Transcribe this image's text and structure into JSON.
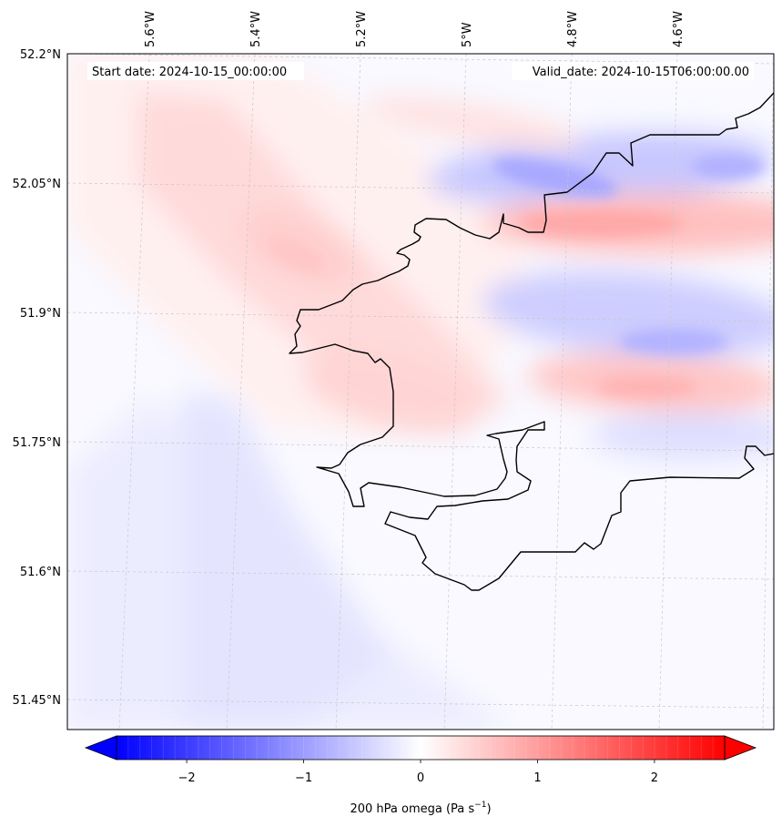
{
  "map": {
    "start_label": "Start date: 2024-10-15_00:00:00",
    "valid_label": "Valid_date: 2024-10-15T06:00:00.00",
    "lon_ticks": [
      "5.6°W",
      "5.4°W",
      "5.2°W",
      "5°W",
      "4.8°W",
      "4.6°W"
    ],
    "lat_ticks": [
      "52.2°N",
      "52.05°N",
      "51.9°N",
      "51.75°N",
      "51.6°N",
      "51.45°N"
    ],
    "field": "200 hPa omega",
    "colormap": "bwr",
    "colors": {
      "negative": "#0000ff",
      "zero": "#ffffff",
      "positive": "#ff0000",
      "coast": "#000000",
      "grid": "#c8c8c8"
    }
  },
  "colorbar": {
    "ticks": [
      "−2",
      "−1",
      "0",
      "1",
      "2"
    ],
    "tick_values": [
      -2,
      -1,
      0,
      1,
      2
    ],
    "range": [
      -2.6,
      2.6
    ],
    "label": "200 hPa omega (Pa s",
    "label_exp": "−1",
    "label_close": ")"
  }
}
